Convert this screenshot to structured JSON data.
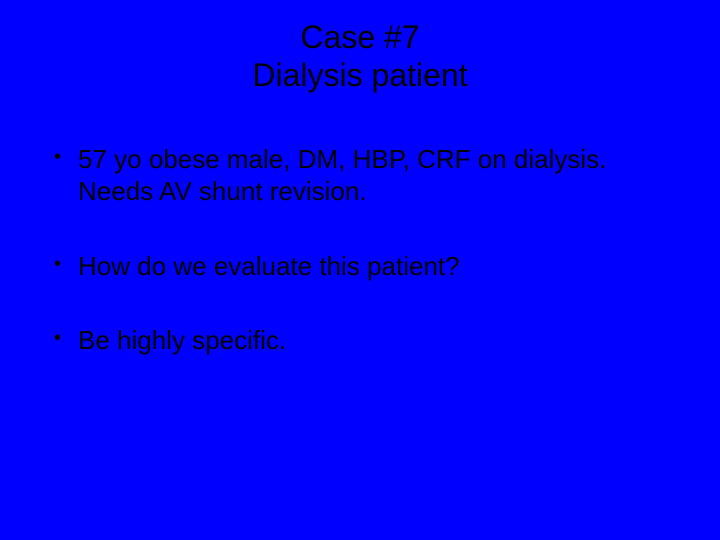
{
  "slide": {
    "background_color": "#0000fe",
    "text_color": "#000000",
    "font_family": "Arial",
    "title": {
      "line1": "Case #7",
      "line2": "Dialysis patient",
      "fontsize": 32,
      "align": "center",
      "weight": "normal"
    },
    "bullets": {
      "fontsize": 26,
      "marker": "•",
      "items": [
        {
          "text": "57 yo obese male, DM, HBP, CRF on dialysis. Needs AV shunt revision."
        },
        {
          "text": "How do we evaluate this patient?"
        },
        {
          "text": "Be highly specific."
        }
      ]
    }
  }
}
